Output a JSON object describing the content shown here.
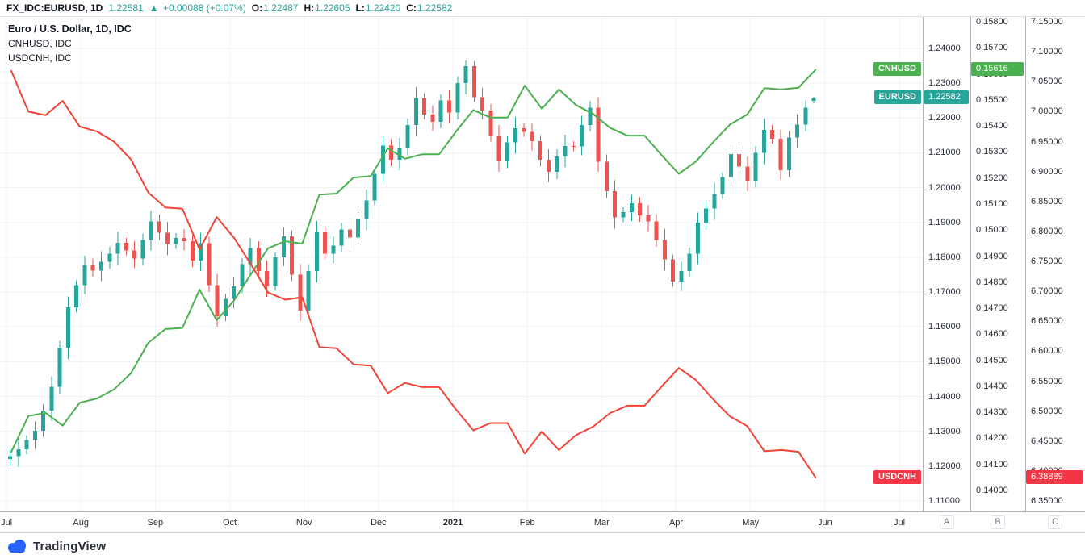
{
  "topbar": {
    "symbol": "FX_IDC:EURUSD, 1D",
    "last_price": "1.22581",
    "arrow": "▲",
    "change": "+0.00088 (+0.07%)",
    "o_label": "O:",
    "o_value": "1.22487",
    "h_label": "H:",
    "h_value": "1.22605",
    "l_label": "L:",
    "l_value": "1.22420",
    "c_label": "C:",
    "c_value": "1.22582"
  },
  "legend": {
    "main": "Euro / U.S. Dollar, 1D, IDC",
    "row2": "CNHUSD, IDC",
    "row3": "USDCNH, IDC"
  },
  "colors": {
    "up": "#26a69a",
    "down": "#ef5350",
    "cnhusd_line": "#4caf50",
    "usdcnh_line": "#f44336",
    "cnhusd_badge": "#4caf50",
    "usdcnh_badge": "#f23645",
    "eurusd_badge": "#26a69a",
    "accent_blue": "#2962ff"
  },
  "price_scales": {
    "A": {
      "button": "A",
      "ticks": [
        "1.24000",
        "1.23000",
        "1.22000",
        "1.21000",
        "1.20000",
        "1.19000",
        "1.18000",
        "1.17000",
        "1.16000",
        "1.15000",
        "1.14000",
        "1.13000",
        "1.12000",
        "1.11000"
      ]
    },
    "B": {
      "button": "B",
      "ticks": [
        "0.15800",
        "0.15700",
        "0.15600",
        "0.15500",
        "0.15400",
        "0.15300",
        "0.15200",
        "0.15100",
        "0.15000",
        "0.14900",
        "0.14800",
        "0.14700",
        "0.14600",
        "0.14500",
        "0.14400",
        "0.14300",
        "0.14200",
        "0.14100",
        "0.14000"
      ]
    },
    "C": {
      "button": "C",
      "ticks": [
        "7.15000",
        "7.10000",
        "7.05000",
        "7.00000",
        "6.95000",
        "6.90000",
        "6.85000",
        "6.80000",
        "6.75000",
        "6.70000",
        "6.65000",
        "6.60000",
        "6.55000",
        "6.50000",
        "6.45000",
        "6.40000",
        "6.35000"
      ]
    }
  },
  "price_badges": [
    {
      "symbol": "CNHUSD",
      "value": "0.15616",
      "axis": "B",
      "color": "#4caf50"
    },
    {
      "symbol": "EURUSD",
      "value": "1.22582",
      "axis": "A",
      "color": "#26a69a"
    },
    {
      "symbol": "USDCNH",
      "value": "6.38889",
      "axis": "C",
      "color": "#f23645"
    }
  ],
  "time_axis": {
    "months": [
      {
        "label": "Jul",
        "t": 0,
        "bold": false
      },
      {
        "label": "Aug",
        "t": 1,
        "bold": false
      },
      {
        "label": "Sep",
        "t": 2,
        "bold": false
      },
      {
        "label": "Oct",
        "t": 3,
        "bold": false
      },
      {
        "label": "Nov",
        "t": 4,
        "bold": false
      },
      {
        "label": "Dec",
        "t": 5,
        "bold": false
      },
      {
        "label": "2021",
        "t": 6,
        "bold": true
      },
      {
        "label": "Feb",
        "t": 7,
        "bold": false
      },
      {
        "label": "Mar",
        "t": 8,
        "bold": false
      },
      {
        "label": "Apr",
        "t": 9,
        "bold": false
      },
      {
        "label": "May",
        "t": 10,
        "bold": false
      },
      {
        "label": "Jun",
        "t": 11,
        "bold": false
      },
      {
        "label": "Jul",
        "t": 12,
        "bold": false
      }
    ]
  },
  "footer": {
    "brand": "TradingView"
  },
  "chart_data": {
    "type": "candlestick+line",
    "title": "Euro / U.S. Dollar, 1D, IDC vs CNHUSD, IDC and USDCNH, IDC",
    "x_unit": "months since Jul 2020 (0=Jul'20 … 12=Jul'21)",
    "grid": true,
    "axes": {
      "A": {
        "min": 1.11,
        "max": 1.24,
        "label": "EURUSD"
      },
      "B": {
        "min": 0.14,
        "max": 0.158,
        "label": "CNHUSD"
      },
      "C": {
        "min": 6.35,
        "max": 7.15,
        "label": "USDCNH"
      }
    },
    "candles": {
      "name": "EURUSD",
      "axis": "A",
      "up_color": "#26a69a",
      "down_color": "#ef5350",
      "t_start": 0.05,
      "t_step": 0.11134,
      "ohlc": [
        [
          1.122,
          1.1249,
          1.12,
          1.1229
        ],
        [
          1.1229,
          1.128,
          1.1197,
          1.1248
        ],
        [
          1.1248,
          1.1289,
          1.1234,
          1.1275
        ],
        [
          1.1275,
          1.1328,
          1.1249,
          1.1302
        ],
        [
          1.1302,
          1.1378,
          1.1284,
          1.136
        ],
        [
          1.136,
          1.1458,
          1.133,
          1.1428
        ],
        [
          1.1428,
          1.156,
          1.1408,
          1.154
        ],
        [
          1.154,
          1.1688,
          1.1508,
          1.1656
        ],
        [
          1.1656,
          1.1734,
          1.1642,
          1.172
        ],
        [
          1.172,
          1.1804,
          1.1694,
          1.1778
        ],
        [
          1.1778,
          1.1796,
          1.1744,
          1.1762
        ],
        [
          1.1762,
          1.1817,
          1.1732,
          1.1787
        ],
        [
          1.1787,
          1.183,
          1.1767,
          1.181
        ],
        [
          1.181,
          1.1874,
          1.1778,
          1.1842
        ],
        [
          1.1842,
          1.1856,
          1.1806,
          1.182
        ],
        [
          1.182,
          1.1846,
          1.177,
          1.1796
        ],
        [
          1.1796,
          1.1868,
          1.1778,
          1.185
        ],
        [
          1.185,
          1.1933,
          1.182,
          1.1903
        ],
        [
          1.1903,
          1.1923,
          1.185,
          1.187
        ],
        [
          1.187,
          1.1902,
          1.1806,
          1.1838
        ],
        [
          1.1838,
          1.1869,
          1.1824,
          1.1855
        ],
        [
          1.1855,
          1.1881,
          1.182,
          1.1846
        ],
        [
          1.1846,
          1.1864,
          1.1772,
          1.179
        ],
        [
          1.179,
          1.187,
          1.176,
          1.184
        ],
        [
          1.184,
          1.186,
          1.17,
          1.172
        ],
        [
          1.172,
          1.1752,
          1.1599,
          1.1631
        ],
        [
          1.1631,
          1.1694,
          1.1617,
          1.168
        ],
        [
          1.168,
          1.1742,
          1.1654,
          1.1716
        ],
        [
          1.1716,
          1.1798,
          1.1698,
          1.178
        ],
        [
          1.178,
          1.1856,
          1.175,
          1.1826
        ],
        [
          1.1826,
          1.1846,
          1.174,
          1.176
        ],
        [
          1.176,
          1.1792,
          1.1686,
          1.1718
        ],
        [
          1.1718,
          1.1814,
          1.1704,
          1.18
        ],
        [
          1.18,
          1.1886,
          1.1774,
          1.186
        ],
        [
          1.186,
          1.1878,
          1.1732,
          1.175
        ],
        [
          1.175,
          1.178,
          1.1617,
          1.1647
        ],
        [
          1.1647,
          1.178,
          1.1627,
          1.176
        ],
        [
          1.176,
          1.1904,
          1.1728,
          1.1872
        ],
        [
          1.1872,
          1.1886,
          1.1796,
          1.181
        ],
        [
          1.181,
          1.186,
          1.1784,
          1.1834
        ],
        [
          1.1834,
          1.1898,
          1.1816,
          1.188
        ],
        [
          1.188,
          1.191,
          1.1827,
          1.1857
        ],
        [
          1.1857,
          1.193,
          1.1837,
          1.191
        ],
        [
          1.191,
          1.1995,
          1.1878,
          1.1963
        ],
        [
          1.1963,
          1.2054,
          1.1949,
          1.204
        ],
        [
          1.204,
          1.2147,
          1.2014,
          1.2121
        ],
        [
          1.2121,
          1.2139,
          1.2062,
          1.208
        ],
        [
          1.208,
          1.2143,
          1.205,
          1.2113
        ],
        [
          1.2113,
          1.22,
          1.2093,
          1.218
        ],
        [
          1.218,
          1.2289,
          1.2148,
          1.2257
        ],
        [
          1.2257,
          1.2271,
          1.2196,
          1.221
        ],
        [
          1.221,
          1.2236,
          1.2163,
          1.2189
        ],
        [
          1.2189,
          1.2268,
          1.2171,
          1.225
        ],
        [
          1.225,
          1.228,
          1.2186,
          1.2216
        ],
        [
          1.2216,
          1.232,
          1.2196,
          1.23
        ],
        [
          1.23,
          1.2365,
          1.2268,
          1.2349
        ],
        [
          1.2349,
          1.2363,
          1.2246,
          1.226
        ],
        [
          1.226,
          1.2286,
          1.2196,
          1.2222
        ],
        [
          1.2222,
          1.224,
          1.2132,
          1.215
        ],
        [
          1.215,
          1.218,
          1.2046,
          1.2076
        ],
        [
          1.2076,
          1.215,
          1.2056,
          1.213
        ],
        [
          1.213,
          1.2203,
          1.2098,
          1.2171
        ],
        [
          1.2171,
          1.2185,
          1.2146,
          1.216
        ],
        [
          1.216,
          1.2186,
          1.2107,
          1.2133
        ],
        [
          1.2133,
          1.2151,
          1.2062,
          1.208
        ],
        [
          1.208,
          1.211,
          1.2015,
          1.2045
        ],
        [
          1.2045,
          1.211,
          1.2025,
          1.209
        ],
        [
          1.209,
          1.2152,
          1.2058,
          1.212
        ],
        [
          1.212,
          1.2133,
          1.2105,
          1.2119
        ],
        [
          1.2119,
          1.2206,
          1.2093,
          1.218
        ],
        [
          1.218,
          1.2248,
          1.2162,
          1.223
        ],
        [
          1.223,
          1.226,
          1.2045,
          1.2075
        ],
        [
          1.2075,
          1.2095,
          1.197,
          1.199
        ],
        [
          1.199,
          1.2022,
          1.1883,
          1.1915
        ],
        [
          1.1915,
          1.1944,
          1.1901,
          1.193
        ],
        [
          1.193,
          1.1981,
          1.1904,
          1.1955
        ],
        [
          1.1955,
          1.1973,
          1.1902,
          1.192
        ],
        [
          1.192,
          1.195,
          1.1873,
          1.1903
        ],
        [
          1.1903,
          1.1923,
          1.183,
          1.185
        ],
        [
          1.185,
          1.1882,
          1.1762,
          1.1794
        ],
        [
          1.1794,
          1.1808,
          1.1716,
          1.173
        ],
        [
          1.173,
          1.1787,
          1.1704,
          1.1761
        ],
        [
          1.1761,
          1.1828,
          1.1743,
          1.181
        ],
        [
          1.181,
          1.1929,
          1.178,
          1.1899
        ],
        [
          1.1899,
          1.196,
          1.1879,
          1.194
        ],
        [
          1.194,
          1.2014,
          1.1908,
          1.1982
        ],
        [
          1.1982,
          1.2044,
          1.1968,
          1.203
        ],
        [
          1.203,
          1.2123,
          1.2004,
          1.2097
        ],
        [
          1.2097,
          1.2115,
          1.2042,
          1.206
        ],
        [
          1.206,
          1.209,
          1.199,
          1.202
        ],
        [
          1.202,
          1.212,
          1.2,
          1.21
        ],
        [
          1.21,
          1.2198,
          1.2068,
          1.2166
        ],
        [
          1.2166,
          1.218,
          1.2126,
          1.214
        ],
        [
          1.214,
          1.2166,
          1.2024,
          1.205
        ],
        [
          1.205,
          1.2162,
          1.2032,
          1.2144
        ],
        [
          1.2144,
          1.2211,
          1.2114,
          1.2181
        ],
        [
          1.2181,
          1.225,
          1.2161,
          1.223
        ],
        [
          1.2249,
          1.2261,
          1.2242,
          1.2258
        ]
      ]
    },
    "lines": [
      {
        "name": "CNHUSD",
        "axis": "B",
        "color": "#4caf50",
        "t_start": 0.065,
        "t_step": 0.23,
        "values": [
          0.14148,
          0.14286,
          0.14298,
          0.14249,
          0.14337,
          0.14353,
          0.14388,
          0.14451,
          0.14567,
          0.1462,
          0.14624,
          0.14771,
          0.14654,
          0.14728,
          0.1483,
          0.1493,
          0.14957,
          0.14948,
          0.15136,
          0.1514,
          0.15202,
          0.15207,
          0.15314,
          0.15274,
          0.15291,
          0.15291,
          0.1538,
          0.15461,
          0.15432,
          0.15432,
          0.15555,
          0.15466,
          0.1554,
          0.1548,
          0.15446,
          0.15392,
          0.15363,
          0.15363,
          0.15288,
          0.15216,
          0.15263,
          0.15337,
          0.15406,
          0.15444,
          0.15545,
          0.1554,
          0.15547,
          0.15616
        ]
      },
      {
        "name": "USDCNH",
        "axis": "C",
        "color": "#f44336",
        "t_start": 0.065,
        "t_step": 0.23,
        "values": [
          7.068,
          7.0,
          6.994,
          7.018,
          6.975,
          6.967,
          6.95,
          6.92,
          6.865,
          6.84,
          6.838,
          6.77,
          6.824,
          6.79,
          6.745,
          6.698,
          6.686,
          6.69,
          6.607,
          6.605,
          6.578,
          6.576,
          6.53,
          6.547,
          6.54,
          6.54,
          6.502,
          6.468,
          6.48,
          6.48,
          6.429,
          6.466,
          6.435,
          6.46,
          6.474,
          6.497,
          6.509,
          6.509,
          6.541,
          6.572,
          6.552,
          6.52,
          6.491,
          6.475,
          6.433,
          6.435,
          6.432,
          6.3889
        ]
      }
    ],
    "last_values": {
      "EURUSD": 1.22582,
      "CNHUSD": 0.15616,
      "USDCNH": 6.38889
    }
  }
}
